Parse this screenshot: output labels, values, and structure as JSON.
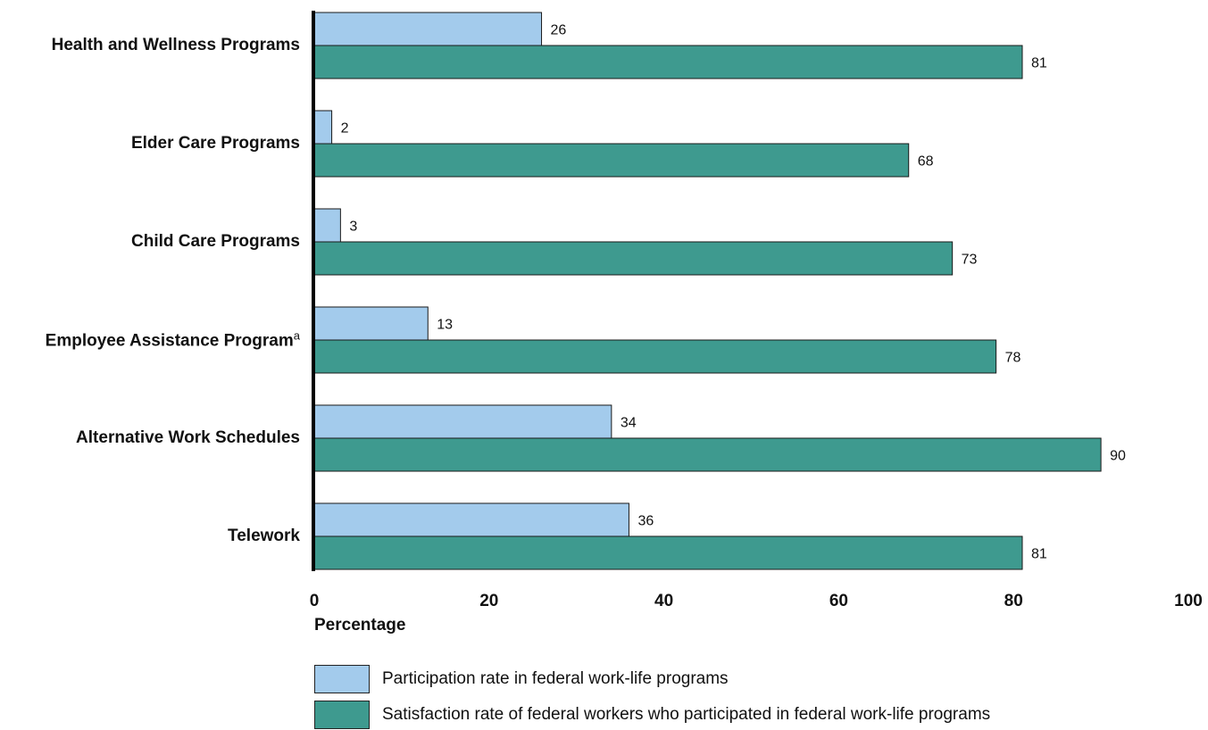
{
  "chart_data": {
    "type": "bar",
    "orientation": "horizontal",
    "categories": [
      "Health and Wellness Programs",
      "Elder Care Programs",
      "Child Care Programs",
      "Employee Assistance Program",
      "Alternative Work Schedules",
      "Telework"
    ],
    "category_footnotes": [
      "",
      "",
      "",
      "a",
      "",
      ""
    ],
    "series": [
      {
        "name": "Participation rate in federal work-life programs",
        "values": [
          26,
          2,
          3,
          13,
          34,
          36
        ],
        "color": "#a3cbec"
      },
      {
        "name": "Satisfaction rate of federal workers who participated in federal work-life programs",
        "values": [
          81,
          68,
          73,
          78,
          90,
          81
        ],
        "color": "#3e9a8f"
      }
    ],
    "xlabel": "Percentage",
    "ylabel": "",
    "xlim": [
      0,
      100
    ],
    "ticks": [
      "0",
      "20",
      "40",
      "60",
      "80",
      "100"
    ],
    "tick_values": [
      0,
      20,
      40,
      60,
      80,
      100
    ],
    "legend_position": "bottom-left",
    "grid": false
  }
}
